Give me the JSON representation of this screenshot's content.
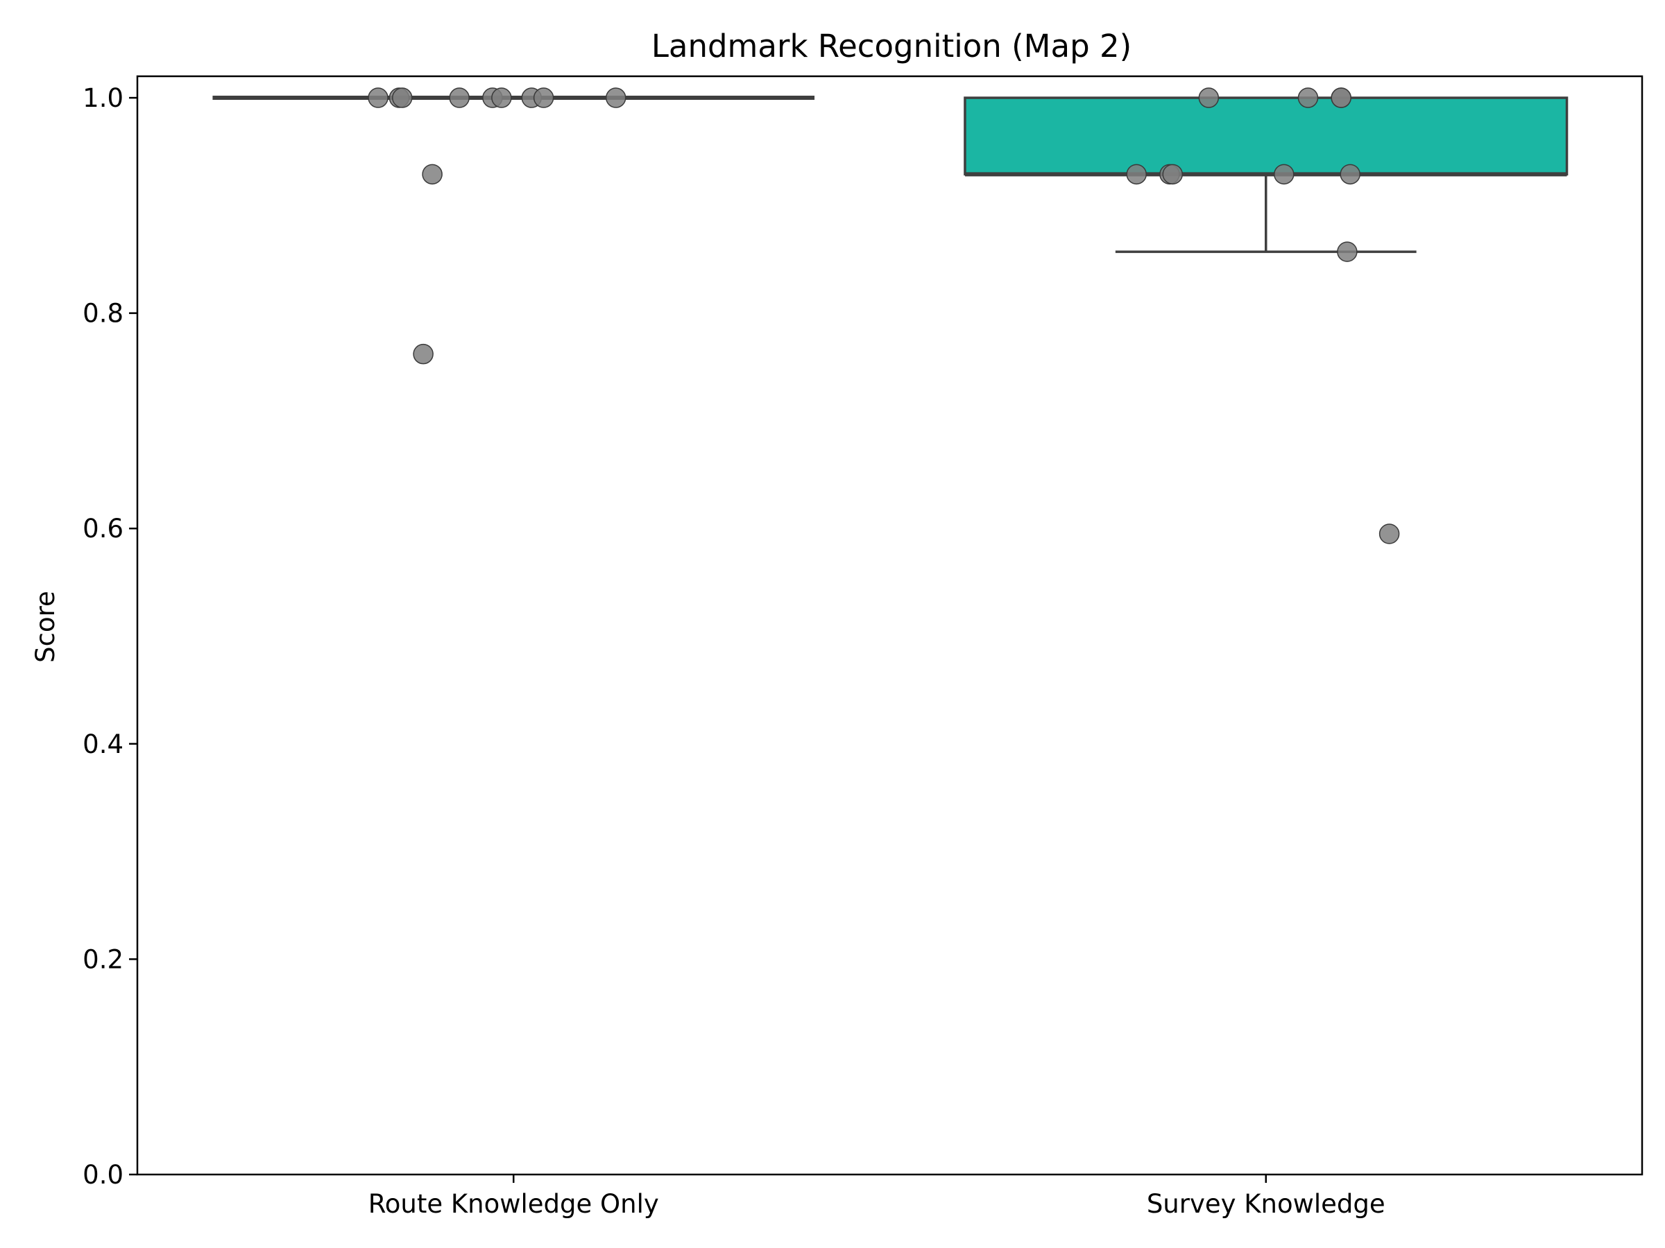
{
  "chart_data": {
    "type": "box",
    "title": "Landmark Recognition (Map 2)",
    "xlabel": "",
    "ylabel": "Score",
    "ylim": [
      0,
      1.02
    ],
    "yticks": [
      0.0,
      0.2,
      0.4,
      0.6,
      0.8,
      1.0
    ],
    "ytick_labels": [
      "0.0",
      "0.2",
      "0.4",
      "0.6",
      "0.8",
      "1.0"
    ],
    "grid": false,
    "categories": [
      "Route Knowledge Only",
      "Survey Knowledge"
    ],
    "boxes": [
      {
        "category": "Route Knowledge Only",
        "q1": 1.0,
        "median": 1.0,
        "q3": 1.0,
        "whisker_low": 1.0,
        "whisker_high": 1.0,
        "fill": "#ffffff"
      },
      {
        "category": "Survey Knowledge",
        "q1": 0.929,
        "median": 0.929,
        "q3": 1.0,
        "whisker_low": 0.857,
        "whisker_high": 1.0,
        "fill": "#1bb6a3"
      }
    ],
    "points": [
      {
        "category": "Route Knowledge Only",
        "values": [
          1.0,
          1.0,
          1.0,
          1.0,
          1.0,
          1.0,
          1.0,
          1.0,
          1.0,
          0.929,
          0.762
        ]
      },
      {
        "category": "Survey Knowledge",
        "values": [
          1.0,
          1.0,
          1.0,
          1.0,
          0.929,
          0.929,
          0.929,
          0.929,
          0.929,
          0.857,
          0.595
        ]
      }
    ],
    "colors": {
      "box_line": "#3f3f3f",
      "point_fill": "#808080",
      "point_stroke": "#3a3a3a",
      "axis": "#000000"
    }
  }
}
